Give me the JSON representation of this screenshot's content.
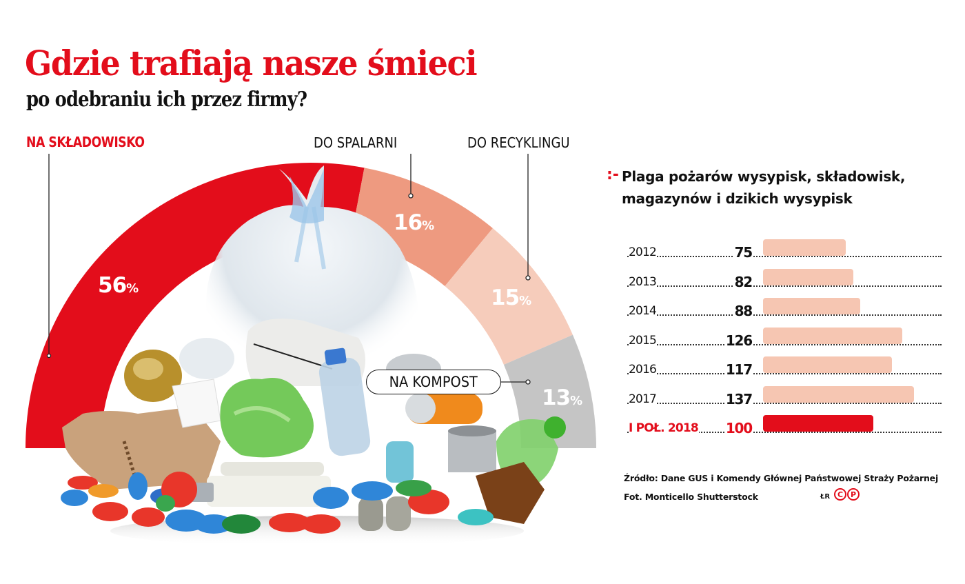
{
  "header": {
    "title": "Gdzie trafiają nasze śmieci",
    "subtitle": "po odebraniu ich przez firmy?"
  },
  "donut": {
    "segments": [
      {
        "label": "NA SKŁADOWISKO",
        "value": "56",
        "unit": "%",
        "color": "#E30D1B"
      },
      {
        "label": "DO SPALARNI",
        "value": "16",
        "unit": "%",
        "color": "#EE9A80"
      },
      {
        "label": "DO RECYKLINGU",
        "value": "15",
        "unit": "%",
        "color": "#F6CCBB"
      },
      {
        "label": "NA KOMPOST",
        "value": "13",
        "unit": "%",
        "color": "#C5C5C5"
      }
    ]
  },
  "bars": {
    "marker": ":-",
    "title": "Plaga pożarów wysypisk, składowisk, magazynów i dzikich wysypisk",
    "rows": [
      {
        "label": "2012",
        "value": "75"
      },
      {
        "label": "2013",
        "value": "82"
      },
      {
        "label": "2014",
        "value": "88"
      },
      {
        "label": "2015",
        "value": "126"
      },
      {
        "label": "2016",
        "value": "117"
      },
      {
        "label": "2017",
        "value": "137"
      },
      {
        "label": "I POŁ. 2018",
        "value": "100"
      }
    ]
  },
  "footer": {
    "source": "Źródło: Dane GUS i Komendy Głównej Państwowej Straży Pożarnej",
    "photo_credit": "Fot. Monticello Shutterstock",
    "author": "ŁR",
    "logo_letters": [
      "C",
      "P"
    ]
  },
  "colors": {
    "accent_red": "#E30D1B",
    "salmon": "#EE9A80",
    "light_salmon": "#F6CCBB",
    "bar_light": "#F6C6B2",
    "gray": "#C5C5C5"
  },
  "chart_data": [
    {
      "type": "pie",
      "variant": "semicircle-donut",
      "title": "Gdzie trafiają nasze śmieci po odebraniu ich przez firmy?",
      "categories": [
        "Na składowisko",
        "Do spalarni",
        "Do recyklingu",
        "Na kompost"
      ],
      "values": [
        56,
        16,
        15,
        13
      ],
      "unit": "%",
      "colors": [
        "#E30D1B",
        "#EE9A80",
        "#F6CCBB",
        "#C5C5C5"
      ]
    },
    {
      "type": "bar",
      "orientation": "horizontal",
      "title": "Plaga pożarów wysypisk, składowisk, magazynów i dzikich wysypisk",
      "categories": [
        "2012",
        "2013",
        "2014",
        "2015",
        "2016",
        "2017",
        "I poł. 2018"
      ],
      "values": [
        75,
        82,
        88,
        126,
        117,
        137,
        100
      ],
      "highlight": "I poł. 2018",
      "grid": false,
      "source": "Dane GUS i Komendy Głównej Państwowej Straży Pożarnej"
    }
  ]
}
